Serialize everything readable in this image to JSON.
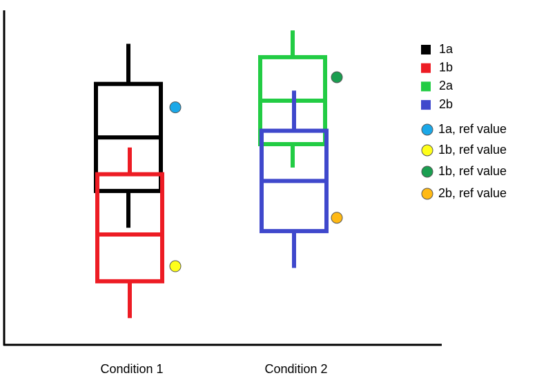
{
  "chart_data": {
    "type": "box",
    "categories": [
      "Condition 1",
      "Condition 2"
    ],
    "ylim": [
      0,
      100
    ],
    "series": [
      {
        "name": "1a",
        "color": "#000000",
        "values": [
          {
            "min": 35,
            "q1": 46,
            "median": 62,
            "q3": 78,
            "max": 90
          },
          null
        ]
      },
      {
        "name": "1b",
        "color": "#ed1c24",
        "values": [
          {
            "min": 8,
            "q1": 19,
            "median": 33,
            "q3": 51,
            "max": 59
          },
          null
        ]
      },
      {
        "name": "2a",
        "color": "#22cc44",
        "values": [
          null,
          {
            "min": 53,
            "q1": 60,
            "median": 73,
            "q3": 86,
            "max": 94
          }
        ]
      },
      {
        "name": "2b",
        "color": "#3f48cc",
        "values": [
          null,
          {
            "min": 23,
            "q1": 34,
            "median": 49,
            "q3": 64,
            "max": 76
          }
        ]
      }
    ],
    "ref_points": [
      {
        "name": "1a, ref value",
        "color": "#1ba8e8",
        "values": [
          71,
          null
        ]
      },
      {
        "name": "1b, ref value",
        "color": "#ffff1a",
        "values": [
          23.5,
          null
        ]
      },
      {
        "name": "1b, ref value",
        "color": "#1a9e50",
        "values": [
          null,
          80
        ]
      },
      {
        "name": "2b, ref value",
        "color": "#ffb914",
        "values": [
          null,
          38
        ]
      }
    ]
  }
}
